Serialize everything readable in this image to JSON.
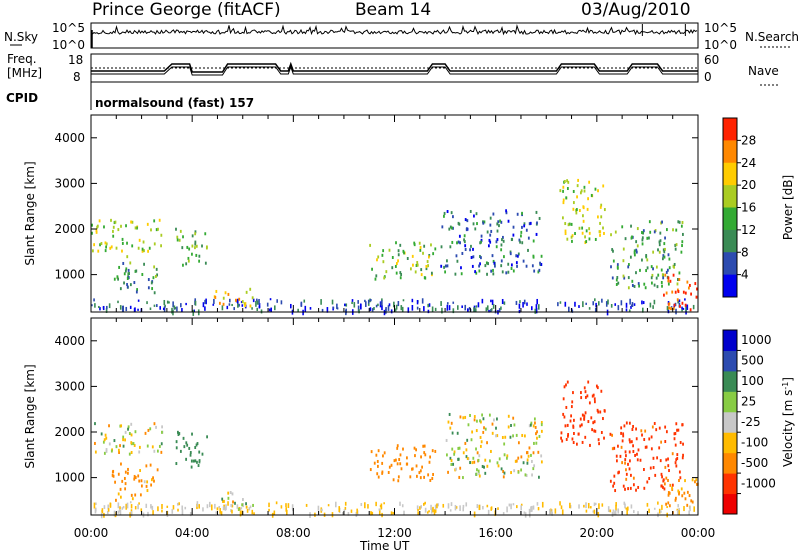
{
  "header": {
    "station": "Prince George (fitACF)",
    "beam": "Beam 14",
    "date": "03/Aug/2010"
  },
  "top_panels": {
    "nsky_label": "N.Sky",
    "nsky_ticks": [
      "10^5",
      "10^0"
    ],
    "nsearch_label": "N.Search",
    "nsearch_ticks": [
      "10^5",
      "10^0"
    ],
    "freq_label_1": "Freq.",
    "freq_label_2": "[MHz]",
    "freq_ticks": [
      "18",
      "8"
    ],
    "nave_label": "Nave",
    "nave_ticks": [
      "60",
      "0"
    ],
    "cpid_label": "CPID",
    "cpid_text": "normalsound (fast) 157"
  },
  "colors": {
    "power": [
      "#0000ee",
      "#2c4bb0",
      "#3a8b55",
      "#33aa33",
      "#aacc22",
      "#ffcc00",
      "#ff8800",
      "#ff2200"
    ],
    "velocity": [
      "#ee0000",
      "#ff3300",
      "#ff8800",
      "#ffbb00",
      "#c8c8c8",
      "#88cc44",
      "#3a8b55",
      "#2c4bb0",
      "#0000cc"
    ]
  },
  "chart_data": [
    {
      "type": "heatmap",
      "title": "",
      "ylabel": "Slant Range [km]",
      "xlabel": "",
      "ylim": [
        180,
        4500
      ],
      "y_ticks": [
        "1000",
        "2000",
        "3000",
        "4000"
      ],
      "colorbar_label": "Power [dB]",
      "colorbar_ticks": [
        "4",
        "8",
        "12",
        "16",
        "20",
        "24",
        "28"
      ],
      "colorbar_range": [
        0,
        32
      ],
      "echo_regions": [
        {
          "t0": 0.0,
          "t1": 2.8,
          "r0": 1500,
          "r1": 2200,
          "level": 18
        },
        {
          "t0": 0.8,
          "t1": 2.6,
          "r0": 600,
          "r1": 1400,
          "level": 12
        },
        {
          "t0": 3.3,
          "t1": 4.6,
          "r0": 1200,
          "r1": 2000,
          "level": 14
        },
        {
          "t0": 4.8,
          "t1": 6.4,
          "r0": 300,
          "r1": 700,
          "level": 22
        },
        {
          "t0": 11.0,
          "t1": 13.6,
          "r0": 900,
          "r1": 1700,
          "level": 16
        },
        {
          "t0": 13.8,
          "t1": 17.8,
          "r0": 1000,
          "r1": 2400,
          "level": 8
        },
        {
          "t0": 18.5,
          "t1": 20.3,
          "r0": 1700,
          "r1": 3100,
          "level": 18
        },
        {
          "t0": 20.5,
          "t1": 23.4,
          "r0": 700,
          "r1": 2200,
          "level": 12
        },
        {
          "t0": 22.6,
          "t1": 24.0,
          "r0": 200,
          "r1": 1000,
          "level": 30
        }
      ]
    },
    {
      "type": "heatmap",
      "title": "",
      "ylabel": "Slant Range [km]",
      "xlabel": "Time UT",
      "ylim": [
        180,
        4500
      ],
      "y_ticks": [
        "1000",
        "2000",
        "3000",
        "4000"
      ],
      "x_ticks": [
        "00:00",
        "04:00",
        "08:00",
        "12:00",
        "16:00",
        "20:00",
        "00:00"
      ],
      "x_range": [
        0,
        24
      ],
      "colorbar_label": "Velocity [m s",
      "colorbar_label_sup": "-1",
      "colorbar_label_end": "]",
      "colorbar_ticks": [
        "1000",
        "500",
        "100",
        "25",
        "-25",
        "-100",
        "-500",
        "-1000"
      ],
      "echo_regions": [
        {
          "t0": 0.0,
          "t1": 2.8,
          "r0": 1500,
          "r1": 2200,
          "velocity": 0
        },
        {
          "t0": 0.8,
          "t1": 2.6,
          "r0": 500,
          "r1": 1300,
          "velocity": -150
        },
        {
          "t0": 3.3,
          "t1": 4.6,
          "r0": 1200,
          "r1": 2000,
          "velocity": 300
        },
        {
          "t0": 4.8,
          "t1": 6.4,
          "r0": 300,
          "r1": 700,
          "velocity": 0
        },
        {
          "t0": 11.0,
          "t1": 13.6,
          "r0": 900,
          "r1": 1700,
          "velocity": -300
        },
        {
          "t0": 14.0,
          "t1": 17.8,
          "r0": 1000,
          "r1": 2400,
          "velocity": 0
        },
        {
          "t0": 18.5,
          "t1": 20.3,
          "r0": 1700,
          "r1": 3100,
          "velocity": -700
        },
        {
          "t0": 20.5,
          "t1": 23.4,
          "r0": 700,
          "r1": 2200,
          "velocity": -600
        },
        {
          "t0": 22.6,
          "t1": 24.0,
          "r0": 200,
          "r1": 1000,
          "velocity": -200
        }
      ]
    }
  ]
}
